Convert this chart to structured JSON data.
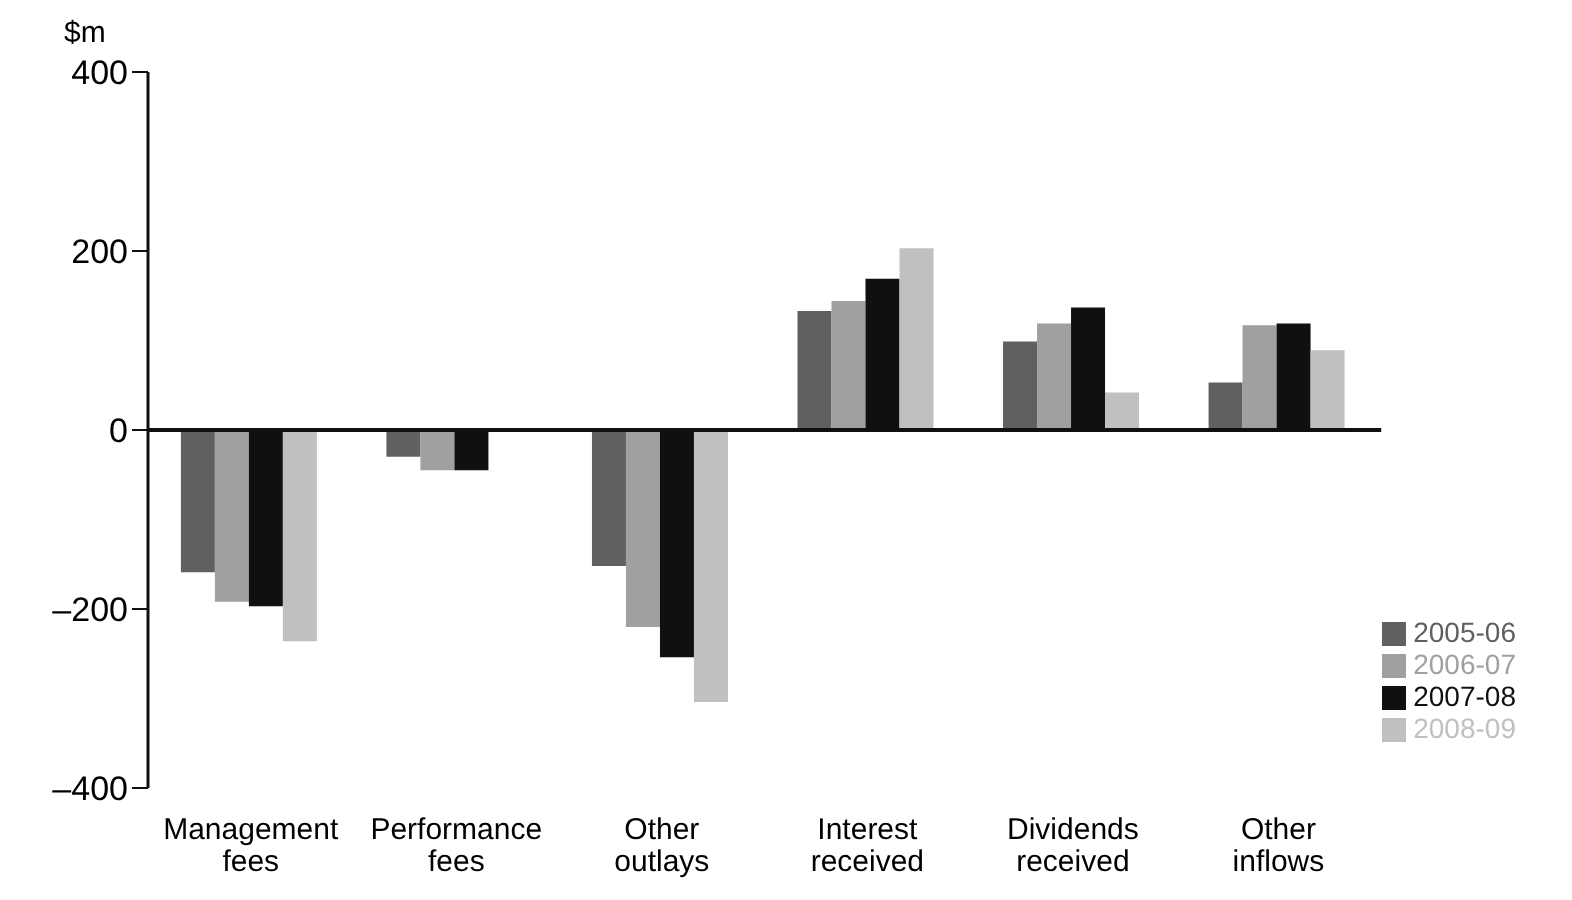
{
  "chart_data": {
    "type": "bar",
    "ylabel": "$m",
    "categories": [
      "Management fees",
      "Performance fees",
      "Other outlays",
      "Interest received",
      "Dividends received",
      "Other inflows"
    ],
    "series": [
      {
        "name": "2005-06",
        "color": "#606060",
        "values": [
          -159,
          -30,
          -152,
          133,
          99,
          53
        ]
      },
      {
        "name": "2006-07",
        "color": "#a0a0a0",
        "values": [
          -192,
          -45,
          -220,
          144,
          119,
          117
        ]
      },
      {
        "name": "2007-08",
        "color": "#101010",
        "values": [
          -197,
          -45,
          -254,
          169,
          137,
          119
        ]
      },
      {
        "name": "2008-09",
        "color": "#c0c0c0",
        "values": [
          -236,
          null,
          -304,
          203,
          42,
          89
        ]
      }
    ],
    "ylim": [
      -400,
      400
    ],
    "yticks": [
      {
        "value": -400,
        "label": "–400"
      },
      {
        "value": -200,
        "label": "–200"
      },
      0,
      200,
      400
    ],
    "ref_lines": [
      {
        "axis": "y",
        "value": 0,
        "color": "#101010"
      }
    ],
    "grid": false,
    "legend": "bottom right"
  }
}
